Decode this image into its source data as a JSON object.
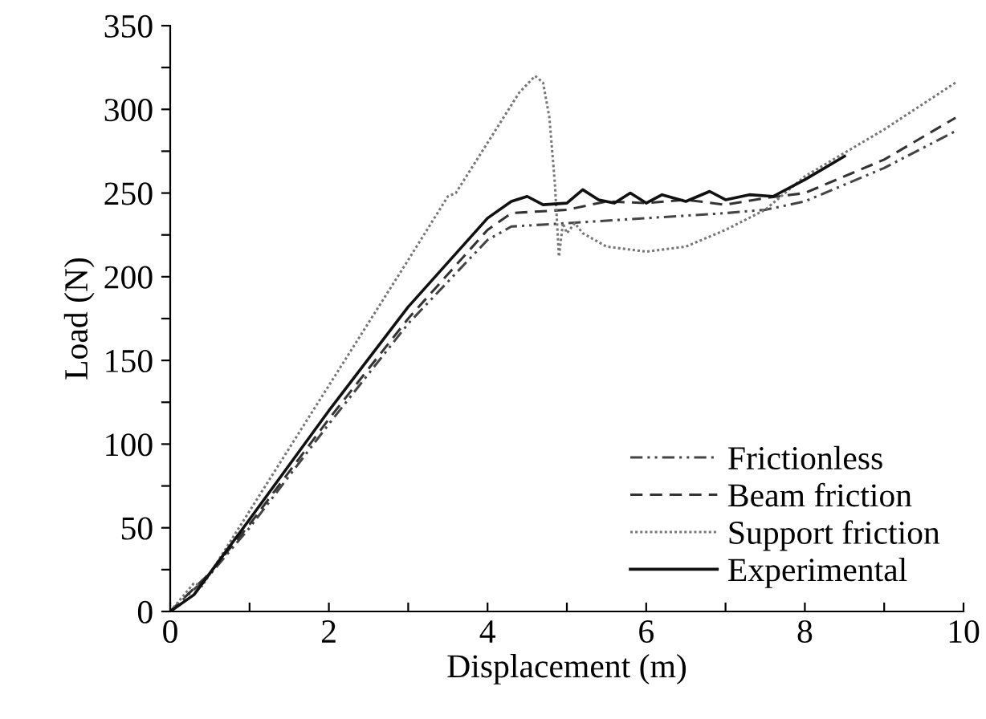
{
  "chart_data": {
    "type": "line",
    "xlabel": "Displacement (m)",
    "ylabel": "Load (N)",
    "xlim": [
      0,
      10
    ],
    "ylim": [
      0,
      350
    ],
    "xticks": [
      0,
      {
        "value": 1,
        "label": null
      },
      2,
      {
        "value": 3,
        "label": null
      },
      4,
      {
        "value": 5,
        "label": null
      },
      6,
      {
        "value": 7,
        "label": null
      },
      8,
      {
        "value": 9,
        "label": null
      },
      10
    ],
    "yticks": [
      0,
      {
        "value": 25,
        "label": null
      },
      50,
      {
        "value": 75,
        "label": null
      },
      100,
      {
        "value": 125,
        "label": null
      },
      150,
      {
        "value": 175,
        "label": null
      },
      200,
      {
        "value": 225,
        "label": null
      },
      250,
      {
        "value": 275,
        "label": null
      },
      300,
      {
        "value": 325,
        "label": null
      },
      350
    ],
    "grid": false,
    "legend": "bottom right",
    "marker": "none",
    "series": [
      {
        "name": "Frictionless",
        "color": "#444444",
        "line_style": "dashdotdot",
        "x": [
          0,
          0.5,
          1,
          2,
          3,
          4,
          4.3,
          5,
          6,
          7,
          7.5,
          8,
          9,
          9.9
        ],
        "values": [
          0,
          22,
          50,
          112,
          172,
          222,
          230,
          232,
          235,
          238,
          240,
          245,
          265,
          287
        ]
      },
      {
        "name": "Beam friction",
        "color": "#333333",
        "line_style": "dashed",
        "x": [
          0,
          0.5,
          1,
          2,
          3,
          4,
          4.3,
          5,
          5.5,
          6,
          6.5,
          7,
          7.5,
          8,
          9,
          9.9
        ],
        "values": [
          0,
          23,
          52,
          115,
          175,
          228,
          238,
          240,
          245,
          244,
          246,
          243,
          247,
          250,
          270,
          295
        ]
      },
      {
        "name": "Support friction",
        "color": "#777777",
        "line_style": "dotted",
        "x": [
          0,
          0.3,
          0.4,
          1,
          2,
          3,
          3.5,
          3.6,
          4,
          4.4,
          4.6,
          4.7,
          4.78,
          4.85,
          4.9,
          4.95,
          5.0,
          5.1,
          5.2,
          5.5,
          6,
          6.5,
          7,
          7.5,
          8,
          9,
          9.9
        ],
        "values": [
          0,
          17,
          15,
          60,
          135,
          210,
          248,
          250,
          280,
          310,
          320,
          316,
          295,
          255,
          212,
          232,
          226,
          232,
          226,
          218,
          215,
          218,
          228,
          240,
          260,
          288,
          316
        ]
      },
      {
        "name": "Experimental",
        "color": "#111111",
        "line_style": "solid",
        "x": [
          0,
          0.3,
          1,
          2,
          3,
          4,
          4.3,
          4.5,
          4.7,
          5,
          5.2,
          5.4,
          5.6,
          5.8,
          6,
          6.2,
          6.5,
          6.8,
          7,
          7.3,
          7.6,
          8,
          8.5
        ],
        "values": [
          0,
          10,
          55,
          120,
          182,
          235,
          245,
          248,
          243,
          244,
          252,
          246,
          244,
          250,
          244,
          249,
          245,
          251,
          246,
          249,
          248,
          258,
          272
        ]
      }
    ]
  }
}
